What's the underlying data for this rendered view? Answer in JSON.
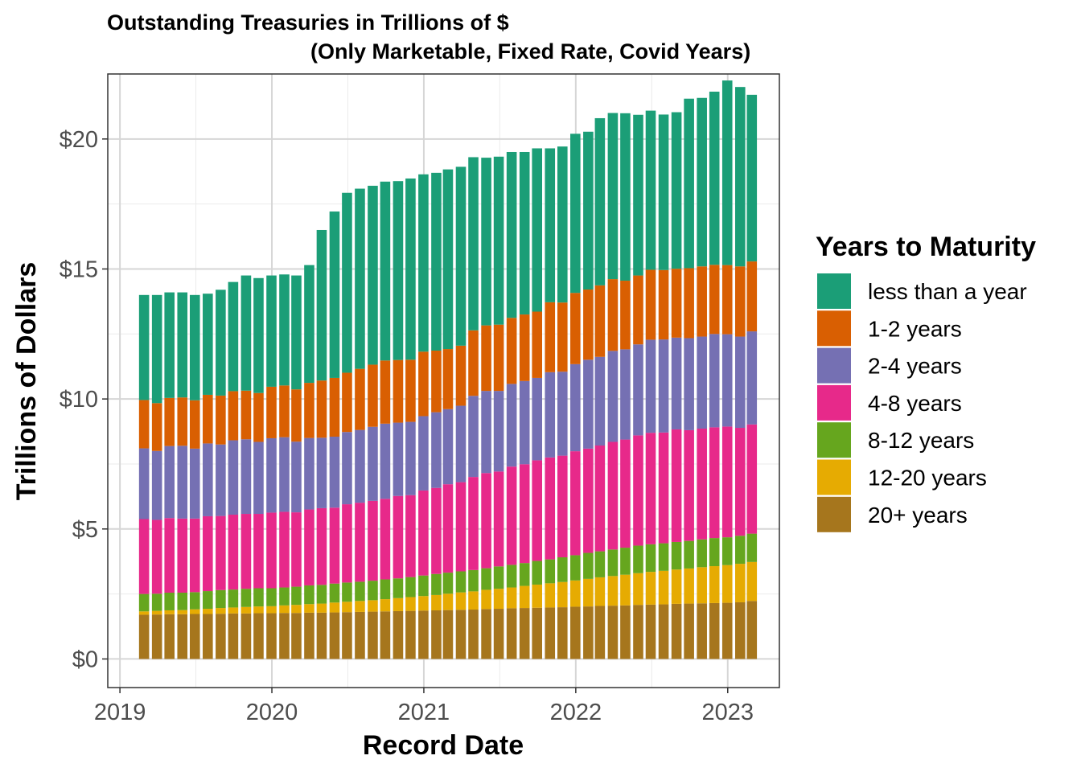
{
  "chart_data": {
    "type": "bar",
    "stacked": true,
    "title": "Outstanding Treasuries in Trillions of $",
    "subtitle": "(Only Marketable, Fixed Rate, Covid Years)",
    "xlabel": "Record Date",
    "ylabel": "Trillions of Dollars",
    "xlim": [
      2018.92,
      2023.34
    ],
    "ylim": [
      -1.1,
      22.5
    ],
    "x_ticks": [
      2019,
      2020,
      2021,
      2022,
      2023
    ],
    "x_tick_labels": [
      "2019",
      "2020",
      "2021",
      "2022",
      "2023"
    ],
    "y_ticks": [
      0,
      5,
      10,
      15,
      20
    ],
    "y_tick_labels": [
      "$0",
      "$5",
      "$10",
      "$15",
      "$20"
    ],
    "grid": true,
    "legend": {
      "title": "Years to Maturity",
      "placement": "right",
      "entries": [
        "less than a year",
        "1-2 years",
        "2-4 years",
        "4-8 years",
        "8-12 years",
        "12-20 years",
        "20+ years"
      ]
    },
    "dates": [
      "2019-02-28",
      "2019-03-31",
      "2019-04-30",
      "2019-05-31",
      "2019-06-30",
      "2019-07-31",
      "2019-08-31",
      "2019-09-30",
      "2019-10-31",
      "2019-11-30",
      "2019-12-31",
      "2020-01-31",
      "2020-02-29",
      "2020-03-31",
      "2020-04-30",
      "2020-05-31",
      "2020-06-30",
      "2020-07-31",
      "2020-08-31",
      "2020-09-30",
      "2020-10-31",
      "2020-11-30",
      "2020-12-31",
      "2021-01-31",
      "2021-02-28",
      "2021-03-31",
      "2021-04-30",
      "2021-05-31",
      "2021-06-30",
      "2021-07-31",
      "2021-08-31",
      "2021-09-30",
      "2021-10-31",
      "2021-11-30",
      "2021-12-31",
      "2022-01-31",
      "2022-02-28",
      "2022-03-31",
      "2022-04-30",
      "2022-05-31",
      "2022-06-30",
      "2022-07-31",
      "2022-08-31",
      "2022-09-30",
      "2022-10-31",
      "2022-11-30",
      "2022-12-31",
      "2023-01-31",
      "2023-02-28"
    ],
    "series": [
      {
        "name": "20+ years",
        "color": "#A6761D",
        "values": [
          1.7,
          1.71,
          1.72,
          1.72,
          1.73,
          1.73,
          1.74,
          1.75,
          1.75,
          1.76,
          1.76,
          1.77,
          1.77,
          1.78,
          1.78,
          1.79,
          1.8,
          1.81,
          1.82,
          1.83,
          1.84,
          1.85,
          1.86,
          1.87,
          1.88,
          1.89,
          1.9,
          1.92,
          1.93,
          1.95,
          1.96,
          1.97,
          1.98,
          1.99,
          2.01,
          2.02,
          2.04,
          2.05,
          2.06,
          2.08,
          2.09,
          2.1,
          2.12,
          2.13,
          2.14,
          2.15,
          2.16,
          2.18,
          2.23
        ]
      },
      {
        "name": "12-20 years",
        "color": "#E6AB02",
        "values": [
          0.13,
          0.14,
          0.15,
          0.16,
          0.18,
          0.2,
          0.22,
          0.23,
          0.25,
          0.26,
          0.27,
          0.29,
          0.31,
          0.33,
          0.35,
          0.38,
          0.4,
          0.42,
          0.44,
          0.47,
          0.5,
          0.53,
          0.56,
          0.59,
          0.63,
          0.67,
          0.7,
          0.74,
          0.77,
          0.8,
          0.85,
          0.89,
          0.93,
          0.97,
          1.01,
          1.06,
          1.1,
          1.14,
          1.18,
          1.22,
          1.26,
          1.29,
          1.32,
          1.35,
          1.39,
          1.42,
          1.45,
          1.48,
          1.5
        ]
      },
      {
        "name": "8-12 years",
        "color": "#66A61E",
        "values": [
          0.67,
          0.66,
          0.68,
          0.67,
          0.66,
          0.68,
          0.69,
          0.69,
          0.7,
          0.7,
          0.69,
          0.69,
          0.7,
          0.72,
          0.72,
          0.73,
          0.74,
          0.74,
          0.75,
          0.76,
          0.76,
          0.77,
          0.79,
          0.81,
          0.81,
          0.81,
          0.82,
          0.83,
          0.86,
          0.87,
          0.88,
          0.91,
          0.92,
          0.95,
          0.97,
          1.0,
          1.0,
          1.02,
          1.04,
          1.06,
          1.06,
          1.06,
          1.06,
          1.06,
          1.07,
          1.08,
          1.07,
          1.08,
          1.09
        ]
      },
      {
        "name": "4-8 years",
        "color": "#E7298A",
        "values": [
          2.88,
          2.84,
          2.87,
          2.85,
          2.83,
          2.88,
          2.85,
          2.88,
          2.88,
          2.86,
          2.91,
          2.91,
          2.86,
          2.92,
          2.95,
          2.92,
          3.01,
          3.04,
          3.07,
          3.1,
          3.17,
          3.15,
          3.27,
          3.31,
          3.4,
          3.43,
          3.58,
          3.66,
          3.65,
          3.78,
          3.8,
          3.87,
          3.92,
          3.91,
          4.0,
          4.01,
          4.07,
          4.14,
          4.16,
          4.24,
          4.29,
          4.26,
          4.33,
          4.26,
          4.26,
          4.26,
          4.26,
          4.15,
          4.2
        ]
      },
      {
        "name": "2-4 years",
        "color": "#7570B3",
        "values": [
          2.72,
          2.65,
          2.77,
          2.8,
          2.69,
          2.8,
          2.75,
          2.86,
          2.87,
          2.77,
          2.86,
          2.87,
          2.72,
          2.75,
          2.71,
          2.73,
          2.78,
          2.8,
          2.85,
          2.89,
          2.82,
          2.82,
          2.86,
          2.91,
          2.89,
          2.94,
          3.12,
          3.16,
          3.1,
          3.18,
          3.2,
          3.17,
          3.28,
          3.23,
          3.35,
          3.42,
          3.41,
          3.5,
          3.47,
          3.5,
          3.58,
          3.58,
          3.53,
          3.54,
          3.54,
          3.59,
          3.55,
          3.51,
          3.58
        ]
      },
      {
        "name": "1-2 years",
        "color": "#D95F02",
        "values": [
          1.86,
          1.84,
          1.85,
          1.86,
          1.86,
          1.87,
          1.88,
          1.89,
          1.87,
          1.88,
          1.98,
          1.99,
          2.01,
          2.12,
          2.2,
          2.26,
          2.28,
          2.35,
          2.39,
          2.43,
          2.41,
          2.39,
          2.48,
          2.37,
          2.31,
          2.31,
          2.52,
          2.52,
          2.55,
          2.54,
          2.56,
          2.55,
          2.69,
          2.66,
          2.74,
          2.7,
          2.75,
          2.76,
          2.64,
          2.65,
          2.69,
          2.67,
          2.65,
          2.69,
          2.7,
          2.66,
          2.66,
          2.7,
          2.69
        ]
      },
      {
        "name": "less than a year",
        "color": "#1B9E77",
        "values": [
          4.04,
          4.16,
          4.06,
          4.04,
          4.05,
          3.89,
          4.07,
          4.2,
          4.43,
          4.42,
          4.28,
          4.27,
          4.38,
          4.53,
          5.79,
          6.4,
          6.92,
          6.93,
          6.88,
          6.88,
          6.88,
          6.97,
          6.82,
          6.84,
          6.91,
          6.88,
          6.66,
          6.45,
          6.46,
          6.38,
          6.25,
          6.28,
          5.92,
          6.0,
          6.12,
          6.07,
          6.43,
          6.39,
          6.44,
          6.18,
          6.12,
          5.98,
          6.02,
          6.52,
          6.48,
          6.66,
          7.1,
          6.9,
          6.41
        ]
      }
    ]
  }
}
